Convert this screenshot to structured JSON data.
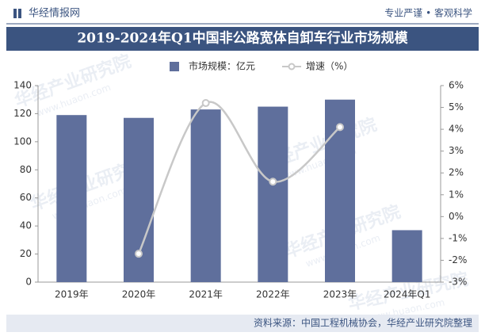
{
  "header": {
    "brand": "华经情报网",
    "slogan": "专业严谨 • 客观科学"
  },
  "chart_data": {
    "type": "bar",
    "title": "2019-2024年Q1中国非公路宽体自卸车行业市场规模",
    "categories": [
      "2019年",
      "2020年",
      "2021年",
      "2022年",
      "2023年",
      "2024年Q1"
    ],
    "series": [
      {
        "name": "市场规模：亿元",
        "type": "bar",
        "color": "#5f6f9c",
        "values": [
          119,
          117,
          123,
          125,
          130,
          37
        ]
      },
      {
        "name": "增速（%）",
        "type": "line",
        "axis": "y2",
        "color": "#c8c8c8",
        "values": [
          null,
          -1.7,
          5.2,
          1.6,
          4.1,
          null
        ]
      }
    ],
    "ylim": [
      0,
      140
    ],
    "yticks": [
      0,
      20,
      40,
      60,
      80,
      100,
      120,
      140
    ],
    "y2lim": [
      -3,
      6
    ],
    "y2ticks": [
      {
        "value": -3,
        "label": "-3%"
      },
      {
        "value": -2,
        "label": "-2%"
      },
      {
        "value": -1,
        "label": "-1%"
      },
      {
        "value": 0,
        "label": "0%"
      },
      {
        "value": 1,
        "label": "1%"
      },
      {
        "value": 2,
        "label": "2%"
      },
      {
        "value": 3,
        "label": "3%"
      },
      {
        "value": 4,
        "label": "4%"
      },
      {
        "value": 5,
        "label": "5%"
      },
      {
        "value": 6,
        "label": "6%"
      }
    ],
    "legend": "top"
  },
  "source": "资料来源：中国工程机械协会，华经产业研究院整理",
  "watermark": {
    "name": "华经产业研究院",
    "url": "www.huaon.com"
  }
}
